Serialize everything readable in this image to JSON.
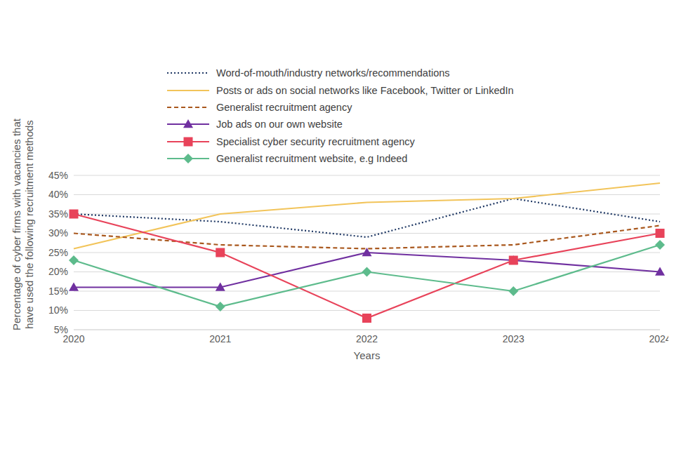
{
  "chart_data": {
    "type": "line",
    "xlabel": "Years",
    "ylabel": "Percentage of cyber firms with vacancies that have used the following recruitment methods",
    "categories": [
      "2020",
      "2021",
      "2022",
      "2023",
      "2024"
    ],
    "ylim": [
      5,
      45
    ],
    "yticks": [
      {
        "value": 5,
        "label": "5%"
      },
      {
        "value": 10,
        "label": "10%"
      },
      {
        "value": 15,
        "label": "15%"
      },
      {
        "value": 20,
        "label": "20%"
      },
      {
        "value": 25,
        "label": "25%"
      },
      {
        "value": 30,
        "label": "30%"
      },
      {
        "value": 35,
        "label": "35%"
      },
      {
        "value": 40,
        "label": "40%"
      },
      {
        "value": 45,
        "label": "45%"
      }
    ],
    "grid": true,
    "legend": "top",
    "series": [
      {
        "name": "Word-of-mouth/industry networks/recommendations",
        "color": "#1f3864",
        "line_style": "dotted",
        "marker": "none",
        "values": [
          35,
          33,
          29,
          39,
          33
        ]
      },
      {
        "name": "Posts or ads on social networks like Facebook, Twitter or LinkedIn",
        "color": "#f2c45a",
        "line_style": "solid",
        "marker": "none",
        "values": [
          26,
          35,
          38,
          39,
          43
        ]
      },
      {
        "name": "Generalist recruitment agency",
        "color": "#a9581e",
        "line_style": "dashed",
        "marker": "none",
        "values": [
          30,
          27,
          26,
          27,
          32
        ]
      },
      {
        "name": "Job ads on our own website",
        "color": "#7030a0",
        "line_style": "solid",
        "marker": "triangle",
        "values": [
          16,
          16,
          25,
          23,
          20
        ]
      },
      {
        "name": "Specialist cyber security recruitment agency",
        "color": "#e8435a",
        "line_style": "solid",
        "marker": "square",
        "values": [
          35,
          25,
          8,
          23,
          30
        ]
      },
      {
        "name": "Generalist recruitment website, e.g Indeed",
        "color": "#5dbb8c",
        "line_style": "solid",
        "marker": "diamond",
        "values": [
          23,
          11,
          20,
          15,
          27
        ]
      }
    ]
  }
}
